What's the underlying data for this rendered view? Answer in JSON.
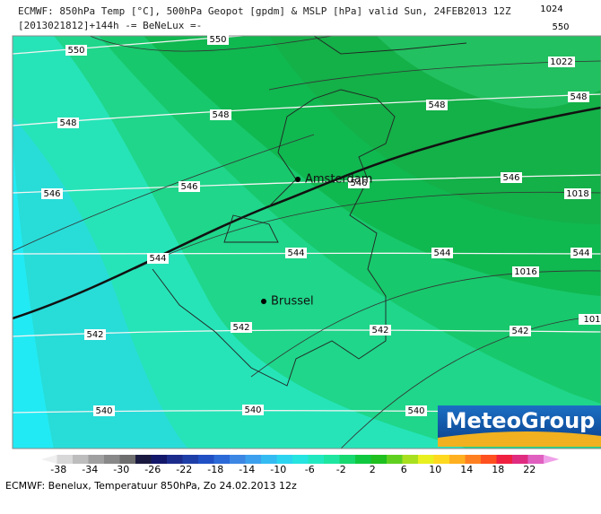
{
  "header": {
    "line1": "ECMWF: 850hPa Temp [°C], 500hPa Geopot [gpdm] & MSLP [hPa] valid Sun, 24FEB2013 12Z",
    "line2": "[2013021812]+144h -= BeNeLux =-"
  },
  "geopotential_labels": [
    "550",
    "550",
    "550",
    "548",
    "548",
    "548",
    "548",
    "546",
    "546",
    "546",
    "546",
    "544",
    "544",
    "544",
    "544",
    "542",
    "542",
    "542",
    "542",
    "540",
    "540",
    "540"
  ],
  "pressure_labels": [
    "1024",
    "1022",
    "1018",
    "1016",
    "101"
  ],
  "cities": [
    "Amsterdam",
    "Brussel"
  ],
  "logo": "MeteoGroup",
  "legend": {
    "ticks": [
      -38,
      -34,
      -30,
      -26,
      -22,
      -18,
      -14,
      -10,
      -6,
      -2,
      2,
      6,
      10,
      14,
      18,
      22
    ],
    "colors": [
      "#f0f0f0",
      "#d8d8d8",
      "#bdbdbd",
      "#a0a0a0",
      "#888888",
      "#6e6e6e",
      "#1a1a40",
      "#14186a",
      "#1c2c8c",
      "#1f3fa8",
      "#2050c4",
      "#2c6ad8",
      "#3c86e4",
      "#3ca0ee",
      "#34bcf2",
      "#2cd4f0",
      "#26e4e0",
      "#22e8c0",
      "#1ee6a0",
      "#18d870",
      "#10c840",
      "#20c020",
      "#60d020",
      "#a8e020",
      "#e8f020",
      "#ffd820",
      "#ffb020",
      "#ff8020",
      "#ff5020",
      "#f02040",
      "#e02c80",
      "#e060c0",
      "#f0a0e8"
    ]
  },
  "footer": "ECMWF: Benelux, Temperatuur 850hPa, Zo 24.02.2013 12z"
}
